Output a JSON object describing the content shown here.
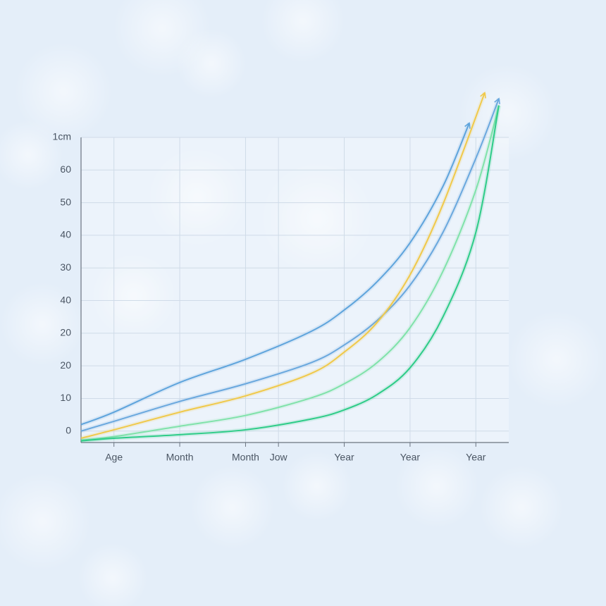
{
  "chart_data": {
    "type": "line",
    "xlim": [
      0,
      13
    ],
    "ylim": [
      -3.5,
      90
    ],
    "xticks": [
      {
        "value": 1,
        "label": "Age"
      },
      {
        "value": 3,
        "label": "Month"
      },
      {
        "value": 5,
        "label": "Month"
      },
      {
        "value": 6,
        "label": "Jow"
      },
      {
        "value": 8,
        "label": "Year"
      },
      {
        "value": 10,
        "label": "Year"
      },
      {
        "value": 12,
        "label": "Year"
      }
    ],
    "yticks": [
      0,
      10,
      20,
      {
        "value": 30,
        "label": "20"
      },
      40,
      {
        "value": 50,
        "label": "30"
      },
      {
        "value": 60,
        "label": "40"
      },
      {
        "value": 70,
        "label": "50"
      },
      {
        "value": 80,
        "label": "60"
      },
      {
        "value": 90,
        "label": "1cm"
      }
    ],
    "grid": true,
    "series": [
      {
        "color": "#5ea4dc",
        "arrow": true,
        "x": [
          0,
          1,
          3,
          5,
          7,
          8,
          9,
          10,
          11,
          11.8
        ],
        "values": [
          2.0,
          5.8,
          14.9,
          22.0,
          30.6,
          37.1,
          45.8,
          57.7,
          75.0,
          94.4
        ]
      },
      {
        "color": "#6aa8de",
        "arrow": true,
        "x": [
          0,
          1,
          3,
          5,
          7,
          8,
          9,
          10,
          11,
          12,
          12.7
        ],
        "values": [
          0,
          3.0,
          9.1,
          14.5,
          21.0,
          26.4,
          33.9,
          44.7,
          60.9,
          83.6,
          101.9
        ]
      },
      {
        "color": "#f0c94a",
        "arrow": true,
        "x": [
          0,
          1,
          3,
          5,
          7,
          8,
          9,
          10,
          11,
          12.27
        ],
        "values": [
          -2.2,
          0.4,
          5.8,
          10.8,
          17.7,
          24.2,
          33.3,
          47.9,
          69.5,
          103.7
        ]
      },
      {
        "color": "#80e2aa",
        "arrow": false,
        "x": [
          0,
          1,
          3,
          5,
          7,
          8,
          9,
          10,
          11,
          12,
          12.7
        ],
        "values": [
          -2.8,
          -1.7,
          1.5,
          4.8,
          10.2,
          14.5,
          21.0,
          31.7,
          49.0,
          73.9,
          99.8
        ]
      },
      {
        "color": "#2ecc88",
        "arrow": false,
        "x": [
          0,
          1,
          3,
          5,
          7,
          8,
          9,
          10,
          11,
          12,
          12.7
        ],
        "values": [
          -3.0,
          -2.2,
          -1.1,
          0.4,
          3.7,
          6.5,
          11.2,
          19.4,
          35.0,
          60.9,
          99.8
        ]
      }
    ]
  }
}
